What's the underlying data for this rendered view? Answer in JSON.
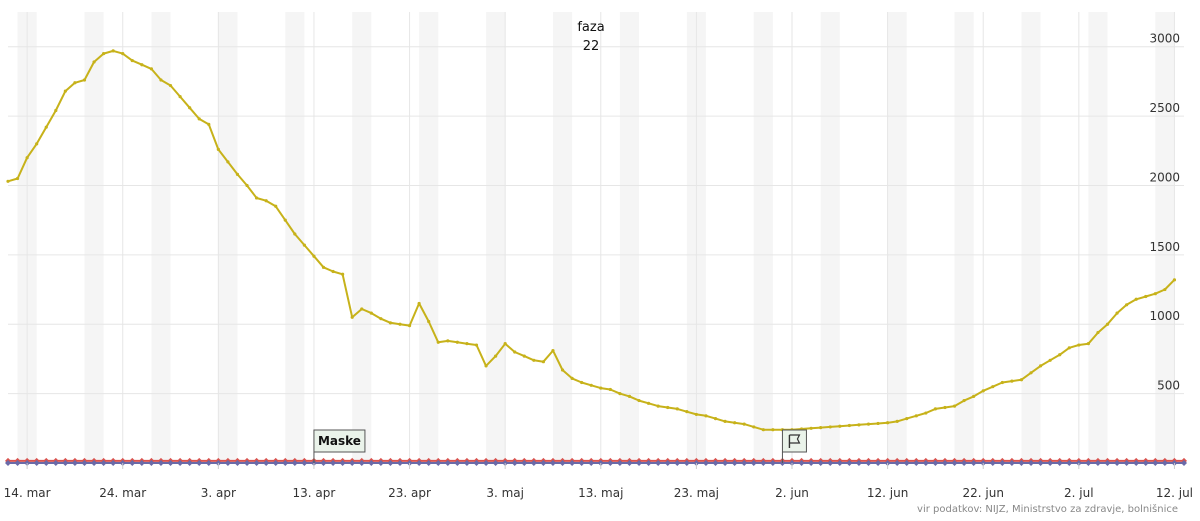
{
  "legend": {
    "title": "faza",
    "value": "22"
  },
  "credits": "vir podatkov: NIJZ, Ministrstvo za zdravje, bolnišnice",
  "flags": [
    {
      "label": "Maske",
      "date": "2021-04-13"
    },
    {
      "label": "",
      "icon": "flag-icon",
      "date": "2021-06-01"
    }
  ],
  "colors": {
    "main_series": "#c7b21a",
    "baseline_red": "#d9534f",
    "baseline_blue": "#6a6aa8",
    "weekend_band": "#f5f5f5",
    "grid": "#e6e6e6"
  },
  "chart_data": {
    "type": "line",
    "xlabel": "",
    "ylabel": "",
    "x_range": [
      "2021-03-12",
      "2021-07-13"
    ],
    "ylim": [
      0,
      3250
    ],
    "y_ticks": [
      500,
      1000,
      1500,
      2000,
      2500,
      3000
    ],
    "x_ticks": [
      {
        "date": "2021-03-14",
        "label": "14. mar"
      },
      {
        "date": "2021-03-24",
        "label": "24. mar"
      },
      {
        "date": "2021-04-03",
        "label": "3. apr"
      },
      {
        "date": "2021-04-13",
        "label": "13. apr"
      },
      {
        "date": "2021-04-23",
        "label": "23. apr"
      },
      {
        "date": "2021-05-03",
        "label": "3. maj"
      },
      {
        "date": "2021-05-13",
        "label": "13. maj"
      },
      {
        "date": "2021-05-23",
        "label": "23. maj"
      },
      {
        "date": "2021-06-02",
        "label": "2. jun"
      },
      {
        "date": "2021-06-12",
        "label": "12. jun"
      },
      {
        "date": "2021-06-22",
        "label": "22. jun"
      },
      {
        "date": "2021-07-02",
        "label": "2. jul"
      },
      {
        "date": "2021-07-12",
        "label": "12. jul"
      }
    ],
    "grid": true,
    "legend_position": "top-center",
    "series": [
      {
        "color": "#c7b21a",
        "points": [
          [
            "2021-03-12",
            2030
          ],
          [
            "2021-03-13",
            2050
          ],
          [
            "2021-03-14",
            2200
          ],
          [
            "2021-03-15",
            2300
          ],
          [
            "2021-03-16",
            2420
          ],
          [
            "2021-03-17",
            2540
          ],
          [
            "2021-03-18",
            2680
          ],
          [
            "2021-03-19",
            2740
          ],
          [
            "2021-03-20",
            2760
          ],
          [
            "2021-03-21",
            2890
          ],
          [
            "2021-03-22",
            2950
          ],
          [
            "2021-03-23",
            2970
          ],
          [
            "2021-03-24",
            2950
          ],
          [
            "2021-03-25",
            2900
          ],
          [
            "2021-03-26",
            2870
          ],
          [
            "2021-03-27",
            2840
          ],
          [
            "2021-03-28",
            2760
          ],
          [
            "2021-03-29",
            2720
          ],
          [
            "2021-03-30",
            2640
          ],
          [
            "2021-03-31",
            2560
          ],
          [
            "2021-04-01",
            2480
          ],
          [
            "2021-04-02",
            2440
          ],
          [
            "2021-04-03",
            2260
          ],
          [
            "2021-04-04",
            2170
          ],
          [
            "2021-04-05",
            2080
          ],
          [
            "2021-04-06",
            2000
          ],
          [
            "2021-04-07",
            1910
          ],
          [
            "2021-04-08",
            1890
          ],
          [
            "2021-04-09",
            1850
          ],
          [
            "2021-04-10",
            1750
          ],
          [
            "2021-04-11",
            1650
          ],
          [
            "2021-04-12",
            1570
          ],
          [
            "2021-04-13",
            1490
          ],
          [
            "2021-04-14",
            1410
          ],
          [
            "2021-04-15",
            1380
          ],
          [
            "2021-04-16",
            1360
          ],
          [
            "2021-04-17",
            1050
          ],
          [
            "2021-04-18",
            1110
          ],
          [
            "2021-04-19",
            1080
          ],
          [
            "2021-04-20",
            1040
          ],
          [
            "2021-04-21",
            1010
          ],
          [
            "2021-04-22",
            1000
          ],
          [
            "2021-04-23",
            990
          ],
          [
            "2021-04-24",
            1150
          ],
          [
            "2021-04-25",
            1020
          ],
          [
            "2021-04-26",
            870
          ],
          [
            "2021-04-27",
            880
          ],
          [
            "2021-04-28",
            870
          ],
          [
            "2021-04-29",
            860
          ],
          [
            "2021-04-30",
            850
          ],
          [
            "2021-05-01",
            700
          ],
          [
            "2021-05-02",
            770
          ],
          [
            "2021-05-03",
            860
          ],
          [
            "2021-05-04",
            800
          ],
          [
            "2021-05-05",
            770
          ],
          [
            "2021-05-06",
            740
          ],
          [
            "2021-05-07",
            730
          ],
          [
            "2021-05-08",
            810
          ],
          [
            "2021-05-09",
            670
          ],
          [
            "2021-05-10",
            610
          ],
          [
            "2021-05-11",
            580
          ],
          [
            "2021-05-12",
            560
          ],
          [
            "2021-05-13",
            540
          ],
          [
            "2021-05-14",
            530
          ],
          [
            "2021-05-15",
            500
          ],
          [
            "2021-05-16",
            480
          ],
          [
            "2021-05-17",
            450
          ],
          [
            "2021-05-18",
            430
          ],
          [
            "2021-05-19",
            410
          ],
          [
            "2021-05-20",
            400
          ],
          [
            "2021-05-21",
            390
          ],
          [
            "2021-05-22",
            370
          ],
          [
            "2021-05-23",
            350
          ],
          [
            "2021-05-24",
            340
          ],
          [
            "2021-05-25",
            320
          ],
          [
            "2021-05-26",
            300
          ],
          [
            "2021-05-27",
            290
          ],
          [
            "2021-05-28",
            280
          ],
          [
            "2021-05-29",
            260
          ],
          [
            "2021-05-30",
            240
          ],
          [
            "2021-05-31",
            240
          ],
          [
            "2021-06-01",
            240
          ],
          [
            "2021-06-02",
            240
          ],
          [
            "2021-06-03",
            245
          ],
          [
            "2021-06-04",
            250
          ],
          [
            "2021-06-05",
            255
          ],
          [
            "2021-06-06",
            260
          ],
          [
            "2021-06-07",
            265
          ],
          [
            "2021-06-08",
            270
          ],
          [
            "2021-06-09",
            275
          ],
          [
            "2021-06-10",
            280
          ],
          [
            "2021-06-11",
            285
          ],
          [
            "2021-06-12",
            290
          ],
          [
            "2021-06-13",
            300
          ],
          [
            "2021-06-14",
            320
          ],
          [
            "2021-06-15",
            340
          ],
          [
            "2021-06-16",
            360
          ],
          [
            "2021-06-17",
            390
          ],
          [
            "2021-06-18",
            400
          ],
          [
            "2021-06-19",
            410
          ],
          [
            "2021-06-20",
            450
          ],
          [
            "2021-06-21",
            480
          ],
          [
            "2021-06-22",
            520
          ],
          [
            "2021-06-23",
            550
          ],
          [
            "2021-06-24",
            580
          ],
          [
            "2021-06-25",
            590
          ],
          [
            "2021-06-26",
            600
          ],
          [
            "2021-06-27",
            650
          ],
          [
            "2021-06-28",
            700
          ],
          [
            "2021-06-29",
            740
          ],
          [
            "2021-06-30",
            780
          ],
          [
            "2021-07-01",
            830
          ],
          [
            "2021-07-02",
            850
          ],
          [
            "2021-07-03",
            860
          ],
          [
            "2021-07-04",
            940
          ],
          [
            "2021-07-05",
            1000
          ],
          [
            "2021-07-06",
            1080
          ],
          [
            "2021-07-07",
            1140
          ],
          [
            "2021-07-08",
            1180
          ],
          [
            "2021-07-09",
            1200
          ],
          [
            "2021-07-10",
            1220
          ],
          [
            "2021-07-11",
            1250
          ],
          [
            "2021-07-12",
            1320
          ]
        ]
      },
      {
        "color": "#d9534f",
        "constant": 15
      },
      {
        "color": "#6a6aa8",
        "constant": 0
      }
    ]
  }
}
